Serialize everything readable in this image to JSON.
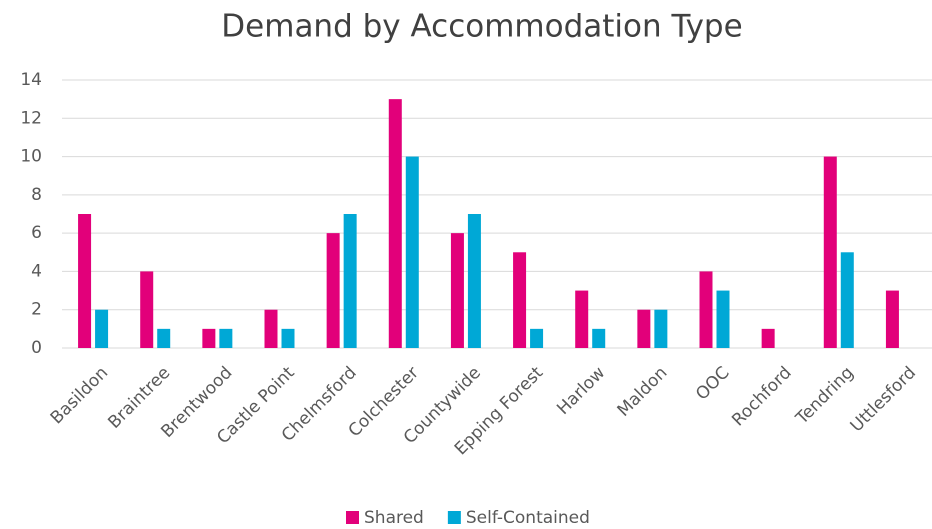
{
  "chart_data": {
    "type": "bar",
    "title": "Demand by Accommodation Type",
    "categories": [
      "Basildon",
      "Braintree",
      "Brentwood",
      "Castle Point",
      "Chelmsford",
      "Colchester",
      "Countywide",
      "Epping Forest",
      "Harlow",
      "Maldon",
      "OOC",
      "Rochford",
      "Tendring",
      "Uttlesford"
    ],
    "series": [
      {
        "name": "Shared",
        "color": "#e2007a",
        "values": [
          7,
          4,
          1,
          2,
          6,
          13,
          6,
          5,
          3,
          2,
          4,
          1,
          10,
          3
        ]
      },
      {
        "name": "Self-Contained",
        "color": "#00a8d6",
        "values": [
          2,
          1,
          1,
          1,
          7,
          10,
          7,
          1,
          1,
          2,
          3,
          0,
          5,
          0
        ]
      }
    ],
    "ylim": [
      0,
      14
    ],
    "yticks": [
      0,
      2,
      4,
      6,
      8,
      10,
      12,
      14
    ],
    "grid": true,
    "legend": "bottom"
  }
}
